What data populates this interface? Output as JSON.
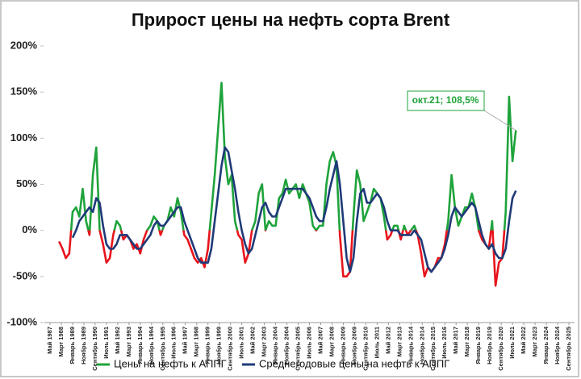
{
  "chart_data": {
    "type": "line",
    "title": "Прирост цены на нефть сорта Brent",
    "annotation": "окт.21; 108,5%",
    "ylim": [
      -100,
      200
    ],
    "yticks": [
      {
        "value": -100,
        "label": "-100%"
      },
      {
        "value": -50,
        "label": "-50%"
      },
      {
        "value": 0,
        "label": "0%"
      },
      {
        "value": 50,
        "label": "50%"
      },
      {
        "value": 100,
        "label": "100%"
      },
      {
        "value": 150,
        "label": "150%"
      },
      {
        "value": 200,
        "label": "200%"
      }
    ],
    "xlim": [
      "1987-05",
      "2025-09"
    ],
    "xticks": [
      {
        "value": "1987-05",
        "label": "Май 1987"
      },
      {
        "value": "1988-03",
        "label": "Март 1988"
      },
      {
        "value": "1989-01",
        "label": "Январь 1989"
      },
      {
        "value": "1989-11",
        "label": "Ноябрь 1989"
      },
      {
        "value": "1990-09",
        "label": "Сентябрь 1990"
      },
      {
        "value": "1991-07",
        "label": "Июль 1991"
      },
      {
        "value": "1992-05",
        "label": "Май 1992"
      },
      {
        "value": "1993-03",
        "label": "Март 1993"
      },
      {
        "value": "1994-01",
        "label": "Январь 1994"
      },
      {
        "value": "1994-11",
        "label": "Ноябрь 1994"
      },
      {
        "value": "1995-09",
        "label": "Сентябрь 1995"
      },
      {
        "value": "1996-07",
        "label": "Июль 1996"
      },
      {
        "value": "1997-05",
        "label": "Май 1997"
      },
      {
        "value": "1998-03",
        "label": "Март 1998"
      },
      {
        "value": "1999-01",
        "label": "Январь 1999"
      },
      {
        "value": "1999-11",
        "label": "Ноябрь 1999"
      },
      {
        "value": "2000-09",
        "label": "Сентябрь 2000"
      },
      {
        "value": "2001-07",
        "label": "Июль 2001"
      },
      {
        "value": "2002-05",
        "label": "Май 2002"
      },
      {
        "value": "2003-03",
        "label": "Март 2003"
      },
      {
        "value": "2004-01",
        "label": "Январь 2004"
      },
      {
        "value": "2004-11",
        "label": "Ноябрь 2004"
      },
      {
        "value": "2005-09",
        "label": "Сентябрь 2005"
      },
      {
        "value": "2006-07",
        "label": "Июль 2006"
      },
      {
        "value": "2007-05",
        "label": "Май 2007"
      },
      {
        "value": "2008-03",
        "label": "Март 2008"
      },
      {
        "value": "2009-01",
        "label": "Январь 2009"
      },
      {
        "value": "2009-11",
        "label": "Ноябрь 2009"
      },
      {
        "value": "2010-09",
        "label": "Сентябрь 2010"
      },
      {
        "value": "2011-07",
        "label": "Июль 2011"
      },
      {
        "value": "2012-05",
        "label": "Май 2012"
      },
      {
        "value": "2013-03",
        "label": "Март 2013"
      },
      {
        "value": "2014-01",
        "label": "Январь 2014"
      },
      {
        "value": "2014-11",
        "label": "Ноябрь 2014"
      },
      {
        "value": "2015-09",
        "label": "Сентябрь 2015"
      },
      {
        "value": "2016-07",
        "label": "Июль 2016"
      },
      {
        "value": "2017-05",
        "label": "Май 2017"
      },
      {
        "value": "2018-03",
        "label": "Март 2018"
      },
      {
        "value": "2019-01",
        "label": "Январь 2019"
      },
      {
        "value": "2019-11",
        "label": "Ноябрь 2019"
      },
      {
        "value": "2020-09",
        "label": "Сентябрь 2020"
      },
      {
        "value": "2021-07",
        "label": "Июль 2021"
      },
      {
        "value": "2022-05",
        "label": "Май 2022"
      },
      {
        "value": "2023-03",
        "label": "Март 2023"
      },
      {
        "value": "2024-01",
        "label": "Январь 2024"
      },
      {
        "value": "2024-11",
        "label": "Ноябрь 2024"
      },
      {
        "value": "2025-09",
        "label": "Сентябрь 2025"
      }
    ],
    "x": [
      "1988-01",
      "1988-04",
      "1988-07",
      "1988-10",
      "1989-01",
      "1989-04",
      "1989-07",
      "1989-10",
      "1990-01",
      "1990-04",
      "1990-07",
      "1990-10",
      "1991-01",
      "1991-04",
      "1991-07",
      "1991-10",
      "1992-01",
      "1992-04",
      "1992-07",
      "1992-10",
      "1993-01",
      "1993-04",
      "1993-07",
      "1993-10",
      "1994-01",
      "1994-04",
      "1994-07",
      "1994-10",
      "1995-01",
      "1995-04",
      "1995-07",
      "1995-10",
      "1996-01",
      "1996-04",
      "1996-07",
      "1996-10",
      "1997-01",
      "1997-04",
      "1997-07",
      "1997-10",
      "1998-01",
      "1998-04",
      "1998-07",
      "1998-10",
      "1999-01",
      "1999-04",
      "1999-07",
      "1999-10",
      "2000-01",
      "2000-04",
      "2000-07",
      "2000-10",
      "2001-01",
      "2001-04",
      "2001-07",
      "2001-10",
      "2002-01",
      "2002-04",
      "2002-07",
      "2002-10",
      "2003-01",
      "2003-04",
      "2003-07",
      "2003-10",
      "2004-01",
      "2004-04",
      "2004-07",
      "2004-10",
      "2005-01",
      "2005-04",
      "2005-07",
      "2005-10",
      "2006-01",
      "2006-04",
      "2006-07",
      "2006-10",
      "2007-01",
      "2007-04",
      "2007-07",
      "2007-10",
      "2008-01",
      "2008-04",
      "2008-07",
      "2008-10",
      "2009-01",
      "2009-04",
      "2009-07",
      "2009-10",
      "2010-01",
      "2010-04",
      "2010-07",
      "2010-10",
      "2011-01",
      "2011-04",
      "2011-07",
      "2011-10",
      "2012-01",
      "2012-04",
      "2012-07",
      "2012-10",
      "2013-01",
      "2013-04",
      "2013-07",
      "2013-10",
      "2014-01",
      "2014-04",
      "2014-07",
      "2014-10",
      "2015-01",
      "2015-04",
      "2015-07",
      "2015-10",
      "2016-01",
      "2016-04",
      "2016-07",
      "2016-10",
      "2017-01",
      "2017-04",
      "2017-07",
      "2017-10",
      "2018-01",
      "2018-04",
      "2018-07",
      "2018-10",
      "2019-01",
      "2019-04",
      "2019-07",
      "2019-10",
      "2020-01",
      "2020-04",
      "2020-07",
      "2020-10",
      "2021-01",
      "2021-04",
      "2021-07",
      "2021-10"
    ],
    "series": [
      {
        "name": "Цены на нефть к АППГ",
        "color": "#1fa33b",
        "negative_color": "#e8141c",
        "values": [
          -12,
          -20,
          -30,
          -25,
          20,
          25,
          15,
          45,
          10,
          -5,
          60,
          90,
          0,
          -15,
          -35,
          -30,
          -5,
          10,
          5,
          -10,
          -5,
          -10,
          -20,
          -15,
          -25,
          -10,
          0,
          5,
          15,
          10,
          -5,
          5,
          10,
          25,
          15,
          35,
          20,
          -5,
          -10,
          -20,
          -30,
          -35,
          -30,
          -40,
          -20,
          20,
          60,
          110,
          160,
          80,
          50,
          60,
          10,
          -5,
          -10,
          -35,
          -25,
          0,
          10,
          40,
          50,
          0,
          10,
          5,
          5,
          35,
          40,
          55,
          40,
          45,
          50,
          35,
          50,
          40,
          30,
          5,
          0,
          5,
          5,
          50,
          75,
          85,
          70,
          -5,
          -50,
          -50,
          -45,
          15,
          65,
          50,
          10,
          20,
          30,
          45,
          40,
          35,
          15,
          -10,
          -5,
          5,
          5,
          -10,
          5,
          -5,
          0,
          5,
          -5,
          -25,
          -50,
          -40,
          -45,
          -40,
          -30,
          -30,
          -15,
          10,
          60,
          25,
          5,
          15,
          25,
          25,
          40,
          25,
          0,
          -10,
          -15,
          -20,
          10,
          -60,
          -35,
          -30,
          20,
          145,
          75,
          108.5
        ]
      },
      {
        "name": "Среднегодовые цены на нефть к АППГ",
        "color": "#1f3a78",
        "values": [
          null,
          null,
          null,
          null,
          -8,
          0,
          10,
          15,
          20,
          25,
          20,
          35,
          30,
          5,
          -15,
          -20,
          -20,
          -15,
          -5,
          -5,
          -5,
          -10,
          -15,
          -20,
          -20,
          -15,
          -10,
          -5,
          5,
          10,
          5,
          5,
          10,
          15,
          20,
          25,
          25,
          10,
          0,
          -10,
          -20,
          -30,
          -35,
          -35,
          -35,
          -20,
          10,
          40,
          70,
          90,
          85,
          65,
          45,
          20,
          0,
          -15,
          -25,
          -20,
          -5,
          10,
          25,
          30,
          20,
          15,
          15,
          25,
          35,
          45,
          45,
          45,
          45,
          45,
          45,
          40,
          35,
          25,
          15,
          10,
          10,
          25,
          45,
          60,
          75,
          50,
          10,
          -30,
          -45,
          -30,
          10,
          40,
          45,
          30,
          30,
          35,
          40,
          35,
          25,
          10,
          0,
          0,
          0,
          -5,
          -5,
          -5,
          -5,
          0,
          -5,
          -10,
          -25,
          -40,
          -45,
          -40,
          -35,
          -30,
          -20,
          -5,
          15,
          25,
          20,
          15,
          20,
          25,
          30,
          25,
          10,
          -5,
          -15,
          -20,
          -15,
          -25,
          -30,
          -30,
          -20,
          10,
          35,
          43
        ]
      }
    ]
  }
}
